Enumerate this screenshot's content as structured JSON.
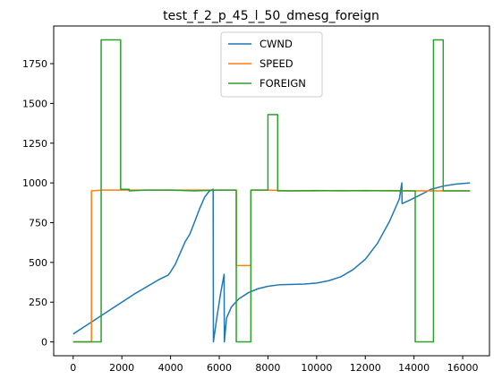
{
  "chart_data": {
    "type": "line",
    "title": "test_f_2_p_45_l_50_dmesg_foreign",
    "xlabel": "",
    "ylabel": "",
    "xlim": [
      -800,
      17100
    ],
    "ylim": [
      -87,
      1987
    ],
    "xticks": [
      0,
      2000,
      4000,
      6000,
      8000,
      10000,
      12000,
      14000,
      16000
    ],
    "yticks": [
      0,
      250,
      500,
      750,
      1000,
      1250,
      1500,
      1750
    ],
    "grid": false,
    "legend_position": "top-center",
    "series": [
      {
        "name": "CWND",
        "color": "#1f77b4",
        "points": [
          [
            0,
            50
          ],
          [
            500,
            100
          ],
          [
            1000,
            150
          ],
          [
            1500,
            200
          ],
          [
            2000,
            250
          ],
          [
            2500,
            300
          ],
          [
            3000,
            345
          ],
          [
            3500,
            390
          ],
          [
            3900,
            420
          ],
          [
            4000,
            440
          ],
          [
            4200,
            490
          ],
          [
            4400,
            560
          ],
          [
            4600,
            630
          ],
          [
            4800,
            680
          ],
          [
            5000,
            760
          ],
          [
            5200,
            840
          ],
          [
            5400,
            910
          ],
          [
            5600,
            950
          ],
          [
            5750,
            960
          ],
          [
            5760,
            0
          ],
          [
            5900,
            150
          ],
          [
            6050,
            300
          ],
          [
            6200,
            425
          ],
          [
            6210,
            0
          ],
          [
            6300,
            150
          ],
          [
            6500,
            220
          ],
          [
            6800,
            270
          ],
          [
            7200,
            310
          ],
          [
            7600,
            335
          ],
          [
            8000,
            350
          ],
          [
            8500,
            360
          ],
          [
            9000,
            362
          ],
          [
            9500,
            364
          ],
          [
            10000,
            370
          ],
          [
            10500,
            385
          ],
          [
            11000,
            410
          ],
          [
            11500,
            455
          ],
          [
            12000,
            520
          ],
          [
            12500,
            620
          ],
          [
            13000,
            760
          ],
          [
            13400,
            900
          ],
          [
            13500,
            1000
          ],
          [
            13510,
            870
          ],
          [
            13800,
            890
          ],
          [
            14200,
            920
          ],
          [
            14700,
            960
          ],
          [
            15200,
            980
          ],
          [
            15700,
            992
          ],
          [
            16300,
            1000
          ]
        ]
      },
      {
        "name": "SPEED",
        "color": "#ff7f0e",
        "points": [
          [
            0,
            0
          ],
          [
            750,
            0
          ],
          [
            750,
            950
          ],
          [
            1200,
            955
          ],
          [
            2000,
            955
          ],
          [
            3000,
            955
          ],
          [
            4000,
            955
          ],
          [
            5000,
            955
          ],
          [
            6000,
            955
          ],
          [
            6700,
            955
          ],
          [
            6700,
            480
          ],
          [
            7300,
            480
          ],
          [
            7300,
            955
          ],
          [
            8000,
            955
          ],
          [
            9000,
            950
          ],
          [
            10000,
            950
          ],
          [
            11000,
            952
          ],
          [
            12000,
            950
          ],
          [
            13000,
            952
          ],
          [
            14000,
            950
          ],
          [
            15000,
            950
          ],
          [
            16300,
            950
          ]
        ]
      },
      {
        "name": "FOREIGN",
        "color": "#2ca02c",
        "points": [
          [
            0,
            0
          ],
          [
            1150,
            0
          ],
          [
            1150,
            1900
          ],
          [
            1950,
            1900
          ],
          [
            1950,
            960
          ],
          [
            2300,
            960
          ],
          [
            2300,
            950
          ],
          [
            3000,
            955
          ],
          [
            4000,
            955
          ],
          [
            5000,
            950
          ],
          [
            6000,
            955
          ],
          [
            6700,
            955
          ],
          [
            6700,
            0
          ],
          [
            7300,
            0
          ],
          [
            7300,
            955
          ],
          [
            8000,
            955
          ],
          [
            8000,
            1430
          ],
          [
            8400,
            1430
          ],
          [
            8400,
            950
          ],
          [
            9000,
            950
          ],
          [
            10000,
            952
          ],
          [
            11000,
            950
          ],
          [
            12000,
            952
          ],
          [
            13000,
            950
          ],
          [
            14050,
            950
          ],
          [
            14050,
            0
          ],
          [
            14800,
            0
          ],
          [
            14800,
            1900
          ],
          [
            15200,
            1900
          ],
          [
            15200,
            950
          ],
          [
            16300,
            950
          ]
        ]
      }
    ]
  }
}
